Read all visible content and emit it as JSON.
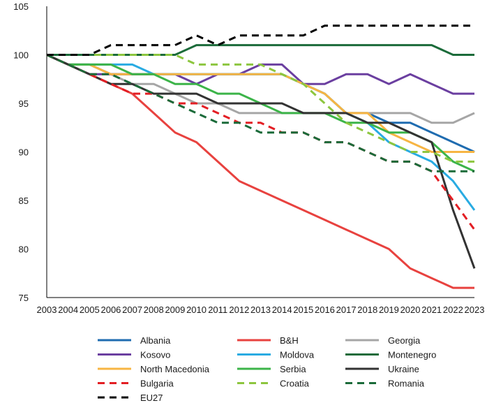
{
  "chart_data": {
    "type": "line",
    "title": "",
    "xlabel": "",
    "ylabel": "",
    "ylim": [
      75,
      105
    ],
    "yticks": [
      75,
      80,
      85,
      90,
      95,
      100,
      105
    ],
    "grid": false,
    "legend_position": "bottom",
    "x": [
      2003,
      2004,
      2005,
      2006,
      2007,
      2008,
      2009,
      2010,
      2011,
      2012,
      2013,
      2014,
      2015,
      2016,
      2017,
      2018,
      2019,
      2020,
      2021,
      2022,
      2023
    ],
    "series": [
      {
        "name": "Albania",
        "color": "#1f6cb0",
        "dash": "solid",
        "values": [
          100,
          99,
          99,
          98,
          98,
          98,
          98,
          98,
          98,
          98,
          98,
          98,
          97,
          96,
          94,
          94,
          93,
          93,
          92,
          91,
          90
        ]
      },
      {
        "name": "B&H",
        "color": "#e8423f",
        "dash": "solid",
        "values": [
          100,
          99,
          98,
          97,
          96,
          94,
          92,
          91,
          89,
          87,
          86,
          85,
          84,
          83,
          82,
          81,
          80,
          78,
          77,
          76,
          76
        ]
      },
      {
        "name": "Georgia",
        "color": "#a6a6a6",
        "dash": "solid",
        "values": [
          100,
          99,
          98,
          98,
          97,
          97,
          96,
          95,
          95,
          94,
          94,
          94,
          94,
          94,
          94,
          94,
          94,
          94,
          93,
          93,
          94
        ]
      },
      {
        "name": "Kosovo",
        "color": "#6b3fa0",
        "dash": "solid",
        "values": [
          100,
          99,
          98,
          98,
          98,
          98,
          98,
          97,
          98,
          98,
          99,
          99,
          97,
          97,
          98,
          98,
          97,
          98,
          97,
          96,
          96
        ]
      },
      {
        "name": "Moldova",
        "color": "#29abe2",
        "dash": "solid",
        "values": [
          100,
          99,
          99,
          99,
          99,
          98,
          98,
          98,
          98,
          98,
          98,
          98,
          97,
          96,
          94,
          93,
          91,
          90,
          89,
          87,
          84
        ]
      },
      {
        "name": "Montenegro",
        "color": "#1b6b3a",
        "dash": "solid",
        "values": [
          100,
          100,
          100,
          100,
          100,
          100,
          100,
          101,
          101,
          101,
          101,
          101,
          101,
          101,
          101,
          101,
          101,
          101,
          101,
          100,
          100
        ]
      },
      {
        "name": "North Macedonia",
        "color": "#f7b543",
        "dash": "solid",
        "values": [
          100,
          99,
          99,
          98,
          98,
          98,
          98,
          98,
          98,
          98,
          98,
          98,
          97,
          96,
          94,
          94,
          92,
          91,
          90,
          90,
          90
        ]
      },
      {
        "name": "Serbia",
        "color": "#3cb449",
        "dash": "solid",
        "values": [
          100,
          99,
          99,
          99,
          98,
          98,
          97,
          97,
          96,
          96,
          95,
          94,
          94,
          94,
          93,
          93,
          92,
          92,
          91,
          89,
          88
        ]
      },
      {
        "name": "Ukraine",
        "color": "#333333",
        "dash": "solid",
        "values": [
          100,
          99,
          98,
          97,
          97,
          96,
          96,
          96,
          95,
          95,
          95,
          95,
          94,
          94,
          94,
          93,
          93,
          92,
          91,
          84,
          78
        ]
      },
      {
        "name": "Bulgaria",
        "color": "#e31e24",
        "dash": "dashed",
        "values": [
          100,
          99,
          98,
          97,
          96,
          96,
          95,
          95,
          94,
          93,
          93,
          92,
          92,
          91,
          91,
          90,
          89,
          89,
          88,
          85,
          82
        ]
      },
      {
        "name": "Croatia",
        "color": "#8dc63f",
        "dash": "dashed",
        "values": [
          100,
          100,
          100,
          100,
          100,
          100,
          100,
          99,
          99,
          99,
          99,
          98,
          97,
          95,
          93,
          92,
          91,
          90,
          90,
          89,
          89
        ]
      },
      {
        "name": "Romania",
        "color": "#1b6b3a",
        "dash": "dashed",
        "values": [
          100,
          99,
          98,
          98,
          97,
          96,
          95,
          94,
          93,
          93,
          92,
          92,
          92,
          91,
          91,
          90,
          89,
          89,
          88,
          88,
          88
        ]
      },
      {
        "name": "EU27",
        "color": "#000000",
        "dash": "dashed",
        "values": [
          100,
          100,
          100,
          101,
          101,
          101,
          101,
          102,
          101,
          102,
          102,
          102,
          102,
          103,
          103,
          103,
          103,
          103,
          103,
          103,
          103
        ]
      }
    ],
    "legend_order": [
      "Albania",
      "B&H",
      "Georgia",
      "Kosovo",
      "Moldova",
      "Montenegro",
      "North Macedonia",
      "Serbia",
      "Ukraine",
      "Bulgaria",
      "Croatia",
      "Romania",
      "EU27"
    ]
  }
}
